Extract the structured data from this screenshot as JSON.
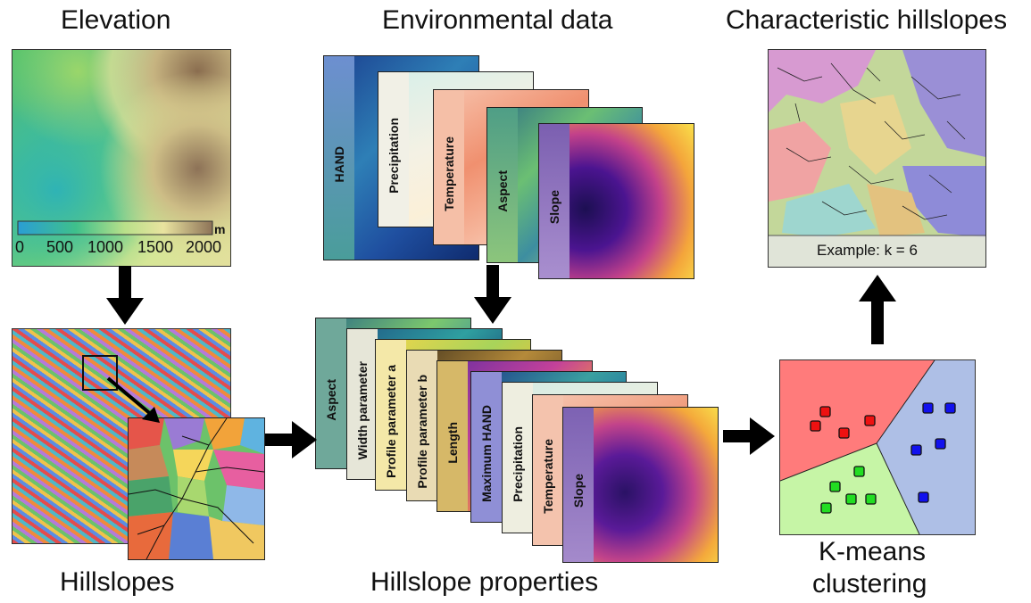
{
  "panels": {
    "elevation": {
      "title": "Elevation",
      "unit": "m",
      "ticks": [
        "0",
        "500",
        "1000",
        "1500",
        "2000"
      ]
    },
    "environmental": {
      "title": "Environmental data",
      "layers": [
        "HAND",
        "Precipitation",
        "Temperature",
        "Aspect",
        "Slope"
      ]
    },
    "characteristic": {
      "title": "Characteristic hillslopes",
      "example": "Example: k = 6"
    },
    "hillslopes": {
      "title": "Hillslopes"
    },
    "properties": {
      "title": "Hillslope properties",
      "layers": [
        "Aspect",
        "Width parameter",
        "Profile parameter a",
        "Profile parameter b",
        "Length",
        "Maximum HAND",
        "Precipitation",
        "Temperature",
        "Slope"
      ]
    },
    "kmeans": {
      "title_line1": "K-means",
      "title_line2": "clustering",
      "colors": {
        "red": "#ff7b7b",
        "green": "#c6f5a6",
        "blue": "#aebfe6"
      }
    }
  }
}
